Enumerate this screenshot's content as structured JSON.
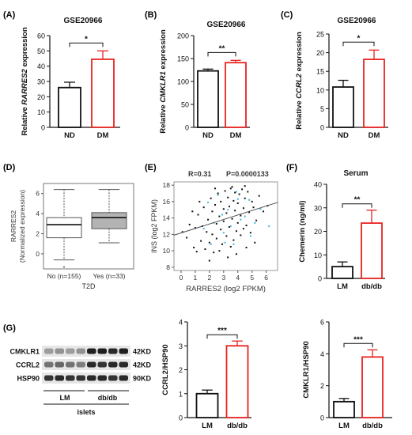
{
  "colors": {
    "control": "#111111",
    "treated": "#e8231f",
    "line": "#4d4d4d",
    "box_fill": "#b3b3b3",
    "cyan": "#3db8d9"
  },
  "panels": {
    "A": {
      "letter": "(A)"
    },
    "B": {
      "letter": "(B)"
    },
    "C": {
      "letter": "(C)"
    },
    "D": {
      "letter": "(D)"
    },
    "E": {
      "letter": "(E)"
    },
    "F": {
      "letter": "(F)"
    },
    "G": {
      "letter": "(G)"
    }
  },
  "western_blot": {
    "bands": [
      "CMKLR1",
      "CCRL2",
      "HSP90"
    ],
    "sizes": [
      "42KD",
      "42KD",
      "90KD"
    ],
    "group_labels": [
      "LM",
      "db/db"
    ],
    "tissue": "islets"
  },
  "chart_data": [
    {
      "id": "A",
      "type": "bar",
      "title": "GSE20966",
      "ylabel": "Relative RARRES2 expression",
      "ylabel_italic_gene": "RARRES2",
      "categories": [
        "ND",
        "DM"
      ],
      "values": [
        26,
        44.5
      ],
      "errors": [
        3.5,
        5.5
      ],
      "ylim": [
        0,
        60
      ],
      "yticks": [
        0,
        10,
        20,
        30,
        40,
        50,
        60
      ],
      "significance": "*"
    },
    {
      "id": "B",
      "type": "bar",
      "title": "GSE20966",
      "ylabel": "Relative CMKLR1 expression",
      "ylabel_italic_gene": "CMKLR1",
      "categories": [
        "ND",
        "DM"
      ],
      "values": [
        123,
        141
      ],
      "errors": [
        4,
        5
      ],
      "ylim": [
        0,
        200
      ],
      "yticks": [
        0,
        50,
        100,
        150,
        200
      ],
      "significance": "**"
    },
    {
      "id": "C",
      "type": "bar",
      "title": "GSE20966",
      "ylabel": "Relative CCRL2 expression",
      "ylabel_italic_gene": "CCRL2",
      "categories": [
        "ND",
        "DM"
      ],
      "values": [
        10.8,
        18.2
      ],
      "errors": [
        1.8,
        2.5
      ],
      "ylim": [
        0,
        25
      ],
      "yticks": [
        0,
        5,
        10,
        15,
        20,
        25
      ],
      "significance": "*"
    },
    {
      "id": "D",
      "type": "box",
      "ylabel": "RARRES2",
      "ylabel2": "(Normalized expression)",
      "xlabel": "T2D",
      "categories": [
        "No (n=155)",
        "Yes (n=33)"
      ],
      "boxes": [
        {
          "min": -0.6,
          "q1": 1.6,
          "median": 2.9,
          "q3": 3.6,
          "max": 6.4,
          "outliers": [
            -1.3
          ]
        },
        {
          "min": 1.1,
          "q1": 2.5,
          "median": 3.6,
          "q3": 4.1,
          "max": 6.4,
          "outliers": []
        }
      ],
      "ylim": [
        -1.5,
        7
      ],
      "yticks": [
        0,
        2,
        4,
        6
      ]
    },
    {
      "id": "E",
      "type": "scatter",
      "annotation_r": "R=0.31",
      "annotation_p": "P=0.0000133",
      "xlabel": "RARRES2 (log2 FPKM)",
      "ylabel": "INS (log2 FPKM)",
      "xlim": [
        -0.5,
        6.8
      ],
      "ylim": [
        7.6,
        18.4
      ],
      "xticks": [
        0,
        1,
        2,
        3,
        4,
        5,
        6
      ],
      "yticks": [
        8,
        10,
        12,
        14,
        16,
        18
      ],
      "fit": {
        "x": [
          -0.5,
          6.8
        ],
        "y": [
          11.9,
          15.9
        ]
      },
      "points_black": [
        [
          0.1,
          12.3
        ],
        [
          0.4,
          11.6
        ],
        [
          0.6,
          13.2
        ],
        [
          0.9,
          10.4
        ],
        [
          1.0,
          12.8
        ],
        [
          1.2,
          14.4
        ],
        [
          1.4,
          11.2
        ],
        [
          1.5,
          13.0
        ],
        [
          1.6,
          15.3
        ],
        [
          1.7,
          10.2
        ],
        [
          1.8,
          12.3
        ],
        [
          1.9,
          13.8
        ],
        [
          2.0,
          11.0
        ],
        [
          2.1,
          16.4
        ],
        [
          2.2,
          14.8
        ],
        [
          2.2,
          12.0
        ],
        [
          2.3,
          9.8
        ],
        [
          2.4,
          15.6
        ],
        [
          2.5,
          13.3
        ],
        [
          2.5,
          11.5
        ],
        [
          2.6,
          17.0
        ],
        [
          2.7,
          14.2
        ],
        [
          2.8,
          12.6
        ],
        [
          2.8,
          16.0
        ],
        [
          2.9,
          10.8
        ],
        [
          3.0,
          15.1
        ],
        [
          3.0,
          13.6
        ],
        [
          3.1,
          17.3
        ],
        [
          3.2,
          11.8
        ],
        [
          3.2,
          14.6
        ],
        [
          3.3,
          16.5
        ],
        [
          3.4,
          12.9
        ],
        [
          3.4,
          15.4
        ],
        [
          3.5,
          10.5
        ],
        [
          3.5,
          17.6
        ],
        [
          3.6,
          13.9
        ],
        [
          3.7,
          16.1
        ],
        [
          3.7,
          11.3
        ],
        [
          3.8,
          14.9
        ],
        [
          3.8,
          17.1
        ],
        [
          3.9,
          12.4
        ],
        [
          4.0,
          15.8
        ],
        [
          4.0,
          13.4
        ],
        [
          4.1,
          16.9
        ],
        [
          4.2,
          11.9
        ],
        [
          4.2,
          14.3
        ],
        [
          4.3,
          17.5
        ],
        [
          4.4,
          12.7
        ],
        [
          4.4,
          15.2
        ],
        [
          4.5,
          16.4
        ],
        [
          4.6,
          13.1
        ],
        [
          4.7,
          17.2
        ],
        [
          4.8,
          14.7
        ],
        [
          4.9,
          12.2
        ],
        [
          5.0,
          16.0
        ],
        [
          5.1,
          15.3
        ],
        [
          5.3,
          13.7
        ],
        [
          5.5,
          16.7
        ],
        [
          5.8,
          14.8
        ],
        [
          6.1,
          15.5
        ],
        [
          2.0,
          8.8
        ],
        [
          3.3,
          9.2
        ],
        [
          1.1,
          9.9
        ],
        [
          4.6,
          10.4
        ],
        [
          2.7,
          10.0
        ],
        [
          3.9,
          9.6
        ],
        [
          5.2,
          11.0
        ],
        [
          1.3,
          16.0
        ],
        [
          0.8,
          14.8
        ],
        [
          2.4,
          17.6
        ],
        [
          3.6,
          17.8
        ],
        [
          4.5,
          17.9
        ]
      ],
      "points_cyan": [
        [
          1.9,
          15.9
        ],
        [
          2.3,
          13.4
        ],
        [
          2.6,
          16.8
        ],
        [
          3.0,
          12.2
        ],
        [
          3.3,
          15.0
        ],
        [
          3.5,
          13.0
        ],
        [
          3.7,
          10.8
        ],
        [
          4.0,
          16.3
        ],
        [
          4.2,
          13.8
        ],
        [
          4.5,
          14.2
        ],
        [
          4.8,
          16.2
        ],
        [
          5.2,
          13.4
        ],
        [
          5.6,
          15.1
        ],
        [
          6.2,
          13.0
        ],
        [
          3.1,
          11.0
        ],
        [
          2.1,
          10.8
        ],
        [
          4.9,
          11.8
        ],
        [
          1.6,
          12.7
        ],
        [
          3.9,
          17.2
        ],
        [
          2.9,
          14.4
        ]
      ]
    },
    {
      "id": "F",
      "type": "bar",
      "title": "Serum",
      "ylabel": "Chemerin (ng/ml)",
      "categories": [
        "LM",
        "db/db"
      ],
      "values": [
        5,
        23.5
      ],
      "errors": [
        2,
        5.5
      ],
      "ylim": [
        0,
        40
      ],
      "yticks": [
        0,
        10,
        20,
        30,
        40
      ],
      "significance": "**"
    },
    {
      "id": "G2",
      "type": "bar",
      "ylabel": "CCRL2/HSP90",
      "categories": [
        "LM",
        "db/db"
      ],
      "values": [
        1.0,
        3.0
      ],
      "errors": [
        0.15,
        0.2
      ],
      "ylim": [
        0,
        4
      ],
      "yticks": [
        0,
        1,
        2,
        3,
        4
      ],
      "significance": "***"
    },
    {
      "id": "G3",
      "type": "bar",
      "ylabel": "CMKLR1/HSP90",
      "categories": [
        "LM",
        "db/db"
      ],
      "values": [
        1.0,
        3.8
      ],
      "errors": [
        0.2,
        0.45
      ],
      "ylim": [
        0,
        6
      ],
      "yticks": [
        0,
        2,
        4,
        6
      ],
      "significance": "***"
    }
  ]
}
